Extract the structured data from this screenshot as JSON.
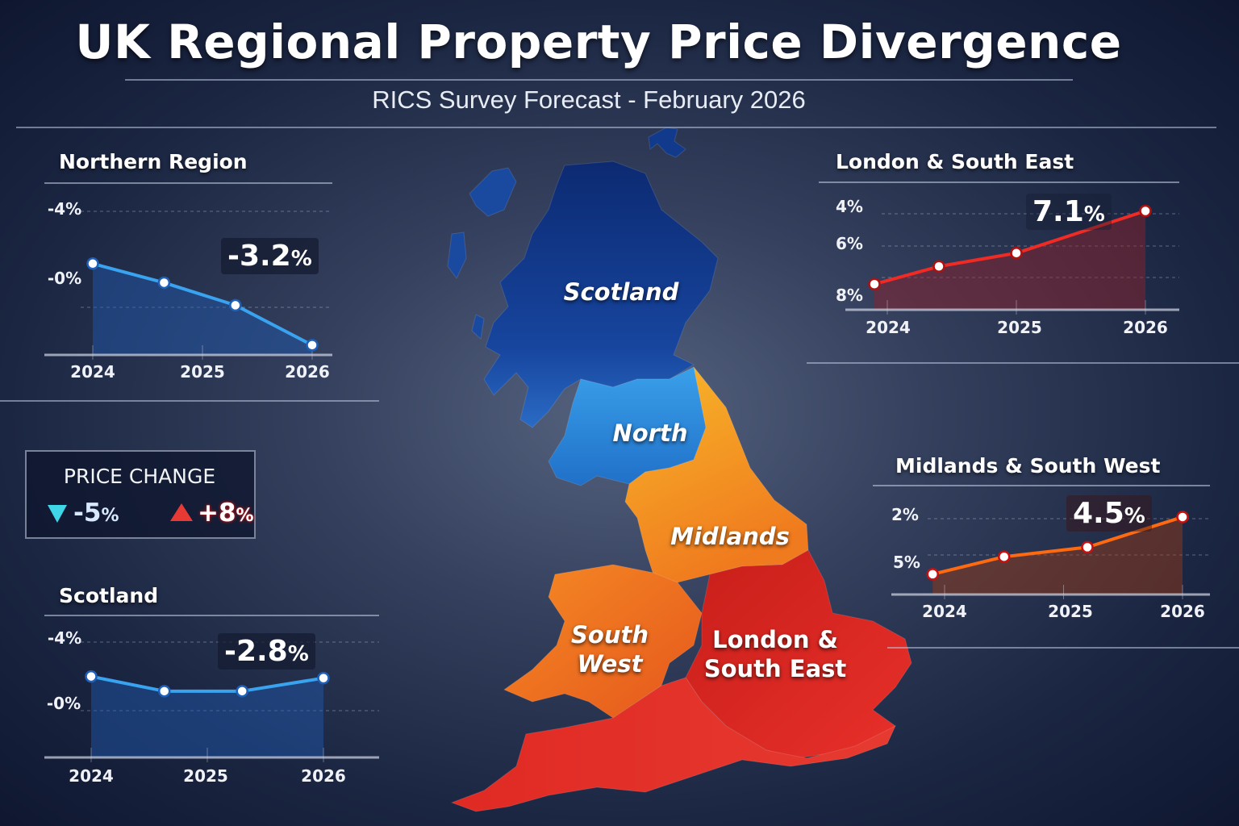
{
  "header": {
    "title": "UK Regional Property Price Divergence",
    "subtitle": "RICS Survey Forecast  -  February 2026"
  },
  "legend": {
    "title": "PRICE CHANGE",
    "down_value": "-5",
    "up_value": "+8",
    "percent": "%",
    "down_icon": "triangle-down-icon",
    "up_icon": "triangle-up-icon",
    "down_color": "#3fd6e8",
    "up_color": "#e83a35"
  },
  "map": {
    "regions": [
      {
        "name": "Scotland",
        "color": "#123a8c"
      },
      {
        "name": "North",
        "color": "#2f90e0"
      },
      {
        "name": "Midlands",
        "color": "#f5a326"
      },
      {
        "name": "South West",
        "line1": "South",
        "line2": "West",
        "color": "#ee7522"
      },
      {
        "name": "London & South East",
        "line1": "London &",
        "line2": "South East",
        "color": "#d4261e"
      }
    ]
  },
  "chart_data": [
    {
      "id": "northern",
      "type": "line",
      "title": "Northern Region",
      "color": "#3aa3f0",
      "x_ticks": [
        "2024",
        "2025",
        "2026"
      ],
      "y_ticks": [
        "-4%",
        "-0%"
      ],
      "x": [
        2024,
        2024.65,
        2025.3,
        2026
      ],
      "values": [
        -0.8,
        0.3,
        1.6,
        3.9
      ],
      "annotation": {
        "value": "-3.2",
        "unit": "%"
      },
      "grid": true
    },
    {
      "id": "london",
      "type": "line",
      "title": "London & South East",
      "color": "#f02a24",
      "x_ticks": [
        "2024",
        "2025",
        "2026"
      ],
      "y_ticks": [
        "4%",
        "6%",
        "8%"
      ],
      "x": [
        2023.9,
        2024.4,
        2025,
        2026
      ],
      "values": [
        7.5,
        6.7,
        6.1,
        4.2
      ],
      "annotation": {
        "value": "7.1",
        "unit": "%"
      },
      "grid": true
    },
    {
      "id": "midlands",
      "type": "line",
      "title": "Midlands & South West",
      "color": "#ff6a10",
      "x_ticks": [
        "2024",
        "2025",
        "2026"
      ],
      "y_ticks": [
        "2%",
        "5%"
      ],
      "x": [
        2023.9,
        2024.5,
        2025.2,
        2026
      ],
      "values": [
        5.8,
        4.7,
        4.1,
        2.2
      ],
      "annotation": {
        "value": "4.5",
        "unit": "%"
      },
      "grid": true
    },
    {
      "id": "scotland",
      "type": "line",
      "title": "Scotland",
      "color": "#3aa3f0",
      "x_ticks": [
        "2024",
        "2025",
        "2026"
      ],
      "y_ticks": [
        "-4%",
        "-0%"
      ],
      "x": [
        2024,
        2024.63,
        2025.3,
        2026
      ],
      "values": [
        -1.6,
        -0.7,
        -0.7,
        -1.5
      ],
      "annotation": {
        "value": "-2.8",
        "unit": "%"
      },
      "grid": true
    }
  ]
}
